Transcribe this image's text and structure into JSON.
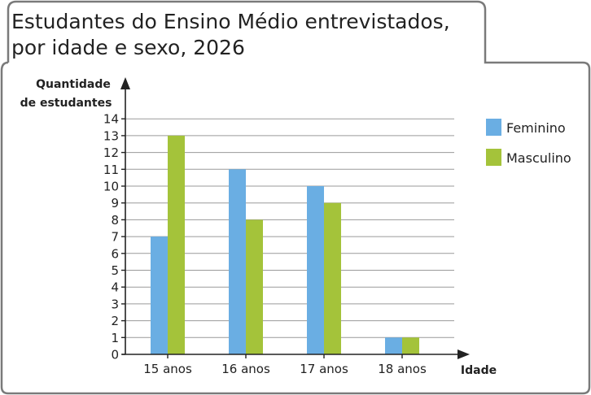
{
  "chart_data": {
    "type": "bar",
    "title_lines": [
      "Estudantes do Ensino Médio entrevistados,",
      "por idade e sexo, 2026"
    ],
    "ylabel_lines": [
      "Quantidade",
      "de estudantes"
    ],
    "xlabel": "Idade",
    "categories": [
      "15 anos",
      "16 anos",
      "17 anos",
      "18 anos"
    ],
    "series": [
      {
        "name": "Feminino",
        "values": [
          7,
          11,
          10,
          1
        ],
        "color": "#6aaee3"
      },
      {
        "name": "Masculino",
        "values": [
          13,
          8,
          9,
          1
        ],
        "color": "#a4c33a"
      }
    ],
    "ylim": [
      0,
      14
    ],
    "yticks": [
      "0",
      "1",
      "2",
      "3",
      "4",
      "5",
      "6",
      "7",
      "8",
      "9",
      "10",
      "11",
      "12",
      "13",
      "14"
    ],
    "grid": true,
    "legend_position": "right"
  }
}
